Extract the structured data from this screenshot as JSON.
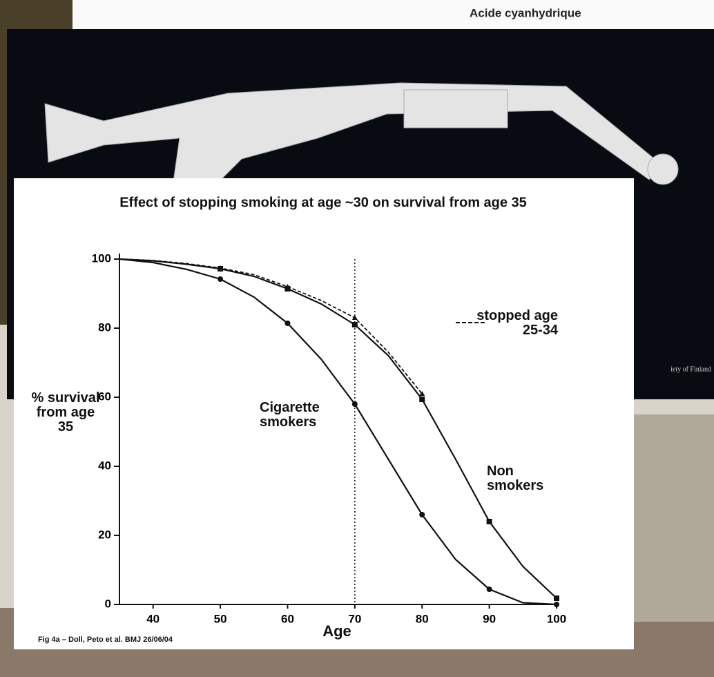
{
  "backdrop": {
    "top_caption": "Acide cyanhydrique",
    "credit": "iety of Finland"
  },
  "chart_data": {
    "type": "line",
    "title": "Effect of stopping smoking at age ~30 on survival from age 35",
    "x_label": "Age",
    "y_label": "% survival from age 35",
    "source": "Fig 4a – Doll, Peto et al. BMJ 26/06/04",
    "x": [
      35,
      40,
      45,
      50,
      55,
      60,
      65,
      70,
      75,
      80,
      85,
      90,
      95,
      100
    ],
    "xlim": [
      35,
      100
    ],
    "xticks": [
      40,
      50,
      60,
      70,
      80,
      90,
      100
    ],
    "ylim": [
      0,
      100
    ],
    "yticks": [
      0,
      20,
      40,
      60,
      80,
      100
    ],
    "vline": 70,
    "series": [
      {
        "name": "Non smokers",
        "color": "#111111",
        "style": "solid",
        "marker": "square",
        "values": [
          100,
          99.5,
          98.5,
          97.2,
          95,
          91.4,
          87,
          81,
          72,
          59.4,
          42,
          24,
          11,
          1.8
        ]
      },
      {
        "name": "Cigarette smokers",
        "color": "#111111",
        "style": "solid",
        "marker": "circle",
        "values": [
          100,
          99,
          97,
          94.2,
          89,
          81.4,
          71,
          58,
          42,
          26,
          13,
          4.4,
          0.5,
          0
        ]
      },
      {
        "name": "stopped age 25-34",
        "color": "#111111",
        "style": "dashed",
        "marker": "triangle",
        "values": [
          100,
          99.6,
          98.7,
          97.4,
          95.5,
          92,
          88,
          83,
          73,
          61,
          null,
          null,
          null,
          null
        ]
      }
    ]
  }
}
